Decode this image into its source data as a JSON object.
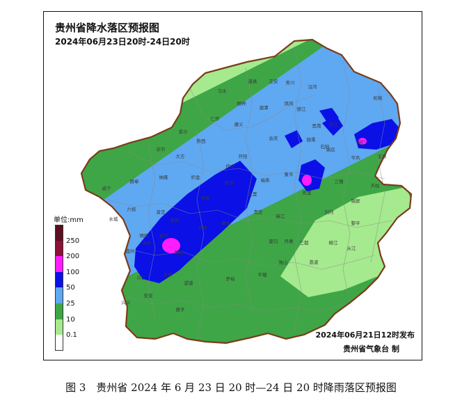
{
  "map": {
    "title": "贵州省降水落区预报图",
    "period": "2024年06月23日20时-24日20时",
    "issue_time": "2024年06月21日12时发布",
    "issuer": "贵州省气象台 制"
  },
  "legend": {
    "unit": "单位:mm",
    "items": [
      {
        "label": "250",
        "color": "#5b0f1f"
      },
      {
        "label": "200",
        "color": "#8b1238"
      },
      {
        "label": "100",
        "color": "#ff1cff"
      },
      {
        "label": "50",
        "color": "#0a10e6"
      },
      {
        "label": "25",
        "color": "#5fa8f2"
      },
      {
        "label": "10",
        "color": "#3ea646"
      },
      {
        "label": "0.1",
        "color": "#a5ea8e"
      }
    ],
    "bottom_color": "#ffffff"
  },
  "place_names": [
    "习水",
    "道真",
    "正安",
    "务川",
    "沿河",
    "桐梓",
    "湄潭",
    "凤冈",
    "德江",
    "仁怀",
    "遵义",
    "思南",
    "印江",
    "松桃",
    "铜仁",
    "石阡",
    "金沙",
    "黔西",
    "毕节",
    "大方",
    "余庆",
    "施秉",
    "镇远",
    "岑巩",
    "玉屏",
    "威宁",
    "赫章",
    "纳雍",
    "织金",
    "开阳",
    "修文",
    "贵阳",
    "龙里",
    "福泉",
    "黄平",
    "凯里",
    "三穗",
    "天柱",
    "六枝",
    "水城",
    "普定",
    "安顺",
    "平坝",
    "贵定",
    "麻江",
    "丹寨",
    "剑河",
    "锦屏",
    "镇宁",
    "关岭",
    "紫云",
    "长顺",
    "惠水",
    "都匀",
    "三都",
    "榕江",
    "黎平",
    "盘州",
    "晴隆",
    "贞丰",
    "望谟",
    "罗甸",
    "平塘",
    "独山",
    "荔波",
    "从江",
    "兴仁",
    "兴义",
    "安龙",
    "册亨"
  ],
  "caption": "图 3　贵州省 2024 年 6 月 23 日 20 时—24 日 20 时降雨落区预报图"
}
